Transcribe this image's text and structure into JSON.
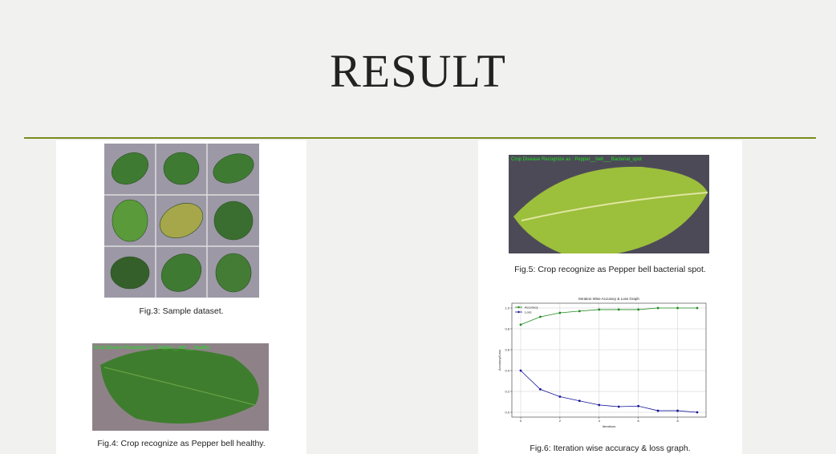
{
  "title": "RESULT",
  "figures": [
    {
      "caption": "Fig.3: Sample dataset."
    },
    {
      "caption": "Fig.4: Crop recognize as Pepper bell healthy.",
      "overlay": "Crop Disease Recognize as : Pepper__bell___healthy"
    },
    {
      "caption": "Fig.5: Crop recognize as Pepper bell bacterial spot.",
      "overlay": "Crop Disease Recognize as : Pepper__bell___Bacterial_spot"
    },
    {
      "caption": "Fig.6: Iteration wise accuracy & loss graph."
    }
  ],
  "chart_data": {
    "type": "line",
    "title": "Iteration Wise Accuracy & Loss Graph",
    "x_label": "Iterations",
    "y_label": "Accuracy/Loss",
    "x": [
      0,
      1,
      2,
      3,
      4,
      5,
      6,
      7,
      8,
      9
    ],
    "series": [
      {
        "name": "Accuracy",
        "color": "#1f8a1f",
        "values": [
          0.84,
          0.915,
          0.954,
          0.97,
          0.985,
          0.985,
          0.985,
          1.0,
          1.0,
          1.0
        ]
      },
      {
        "name": "Loss",
        "color": "#14149a",
        "values": [
          0.4,
          0.22,
          0.15,
          0.11,
          0.07,
          0.054,
          0.06,
          0.015,
          0.015,
          0.0
        ]
      }
    ],
    "xlim": [
      -0.45,
      9.45
    ],
    "ylim": [
      -0.046,
      1.046
    ],
    "xticks": [
      0,
      2,
      4,
      6,
      8
    ],
    "yticks": [
      {
        "value": 0,
        "label": "0.0"
      },
      0.2,
      0.4,
      0.6,
      0.8,
      {
        "value": 1,
        "label": "1.0"
      }
    ],
    "grid": true,
    "legend": "upper left"
  }
}
